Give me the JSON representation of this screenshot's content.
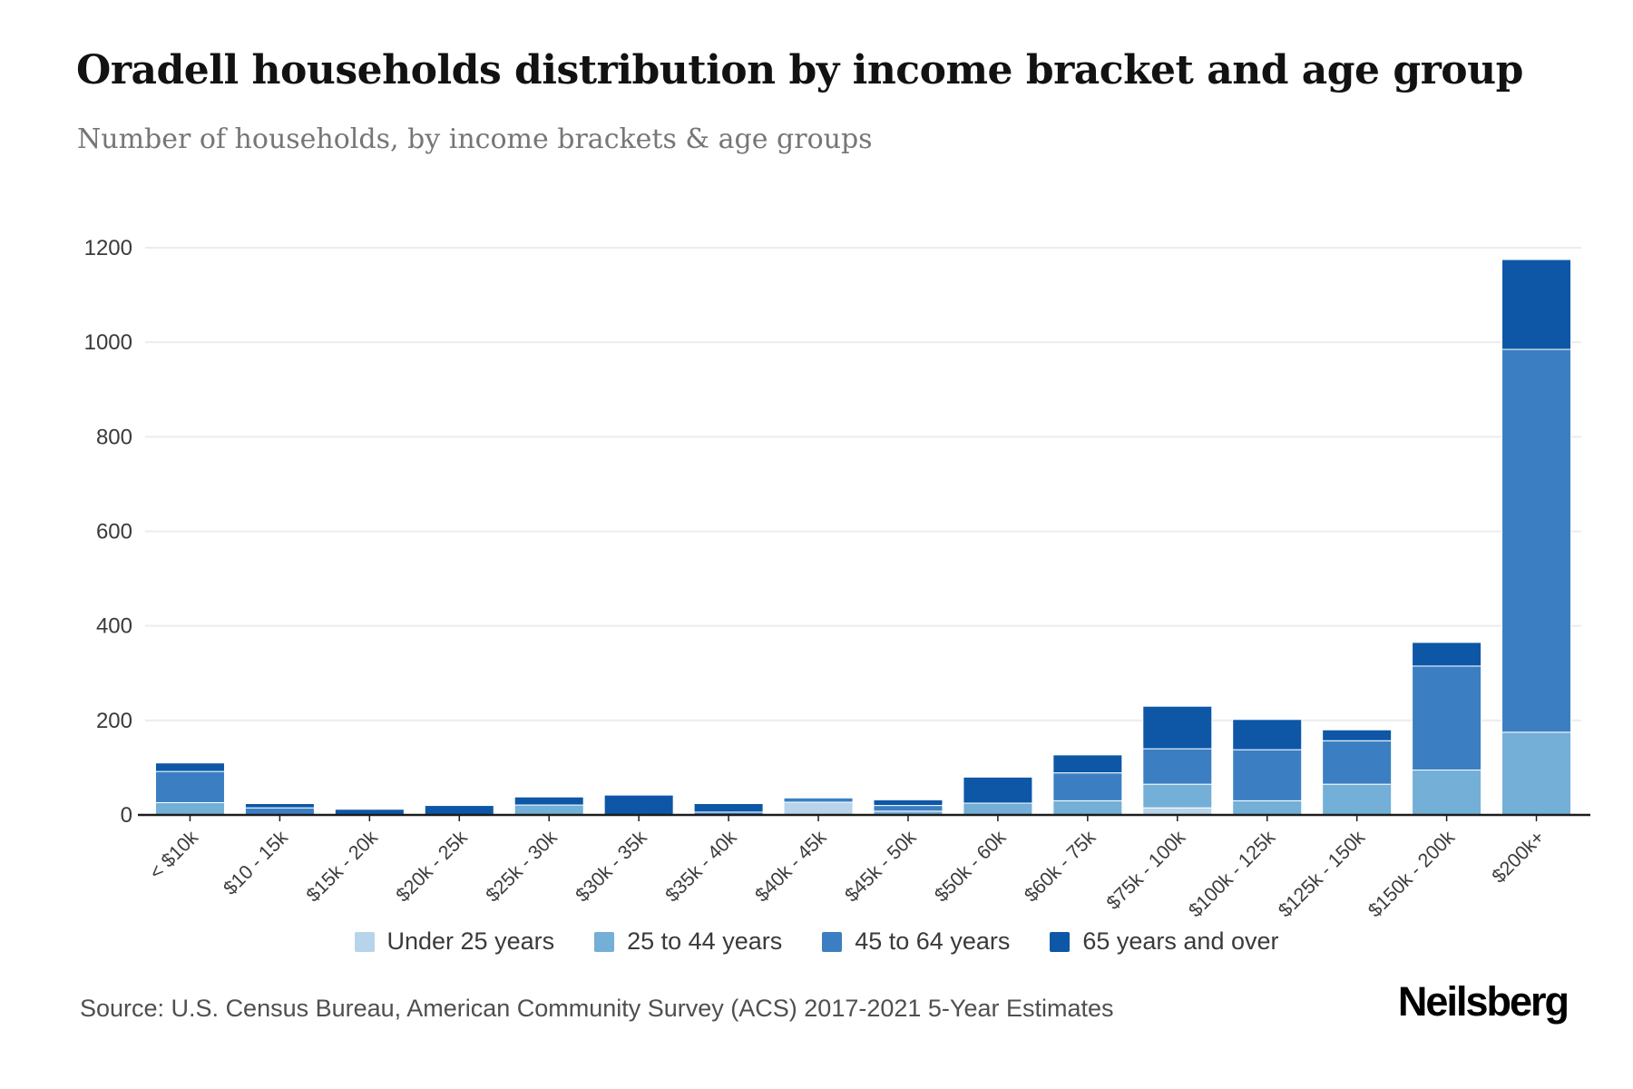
{
  "header": {
    "title": "Oradell households distribution by income bracket and age group",
    "subtitle": "Number of households, by income brackets & age groups"
  },
  "chart_data": {
    "type": "bar",
    "stacked": true,
    "title": "Oradell households distribution by income bracket and age group",
    "subtitle": "Number of households, by income brackets & age groups",
    "xlabel": "",
    "ylabel": "",
    "ylim": [
      0,
      1200
    ],
    "yticks": [
      0,
      200,
      400,
      600,
      800,
      1000,
      1200
    ],
    "grid": "horizontal",
    "legend_position": "bottom",
    "categories": [
      "< $10k",
      "$10 - 15k",
      "$15k - 20k",
      "$20k - 25k",
      "$25k - 30k",
      "$30k - 35k",
      "$35k - 40k",
      "$40k - 45k",
      "$45k - 50k",
      "$50k - 60k",
      "$60k - 75k",
      "$75k - 100k",
      "$100k - 125k",
      "$125k - 150k",
      "$150k - 200k",
      "$200k+"
    ],
    "series": [
      {
        "name": "Under 25 years",
        "color": "#b7d4ea",
        "values": [
          0,
          0,
          0,
          0,
          0,
          0,
          0,
          27,
          0,
          0,
          0,
          15,
          0,
          0,
          0,
          0
        ]
      },
      {
        "name": "25 to 44 years",
        "color": "#73afd6",
        "values": [
          26,
          0,
          0,
          0,
          21,
          0,
          0,
          0,
          8,
          25,
          30,
          50,
          30,
          65,
          95,
          175
        ]
      },
      {
        "name": "45 to 64 years",
        "color": "#3b7fc2",
        "values": [
          66,
          15,
          0,
          0,
          0,
          0,
          6,
          9,
          12,
          0,
          59,
          75,
          108,
          92,
          220,
          810
        ]
      },
      {
        "name": "65 years and over",
        "color": "#0d57a6",
        "values": [
          18,
          9,
          12,
          20,
          17,
          42,
          18,
          0,
          12,
          55,
          38,
          90,
          64,
          23,
          50,
          190
        ]
      }
    ],
    "totals": [
      110,
      24,
      12,
      20,
      38,
      42,
      24,
      36,
      32,
      80,
      127,
      230,
      202,
      180,
      365,
      1175
    ]
  },
  "footer": {
    "source": "Source: U.S. Census Bureau, American Community Survey (ACS) 2017-2021 5-Year Estimates",
    "brand": "Neilsberg"
  },
  "colors": {
    "axis": "#1c1c1c",
    "gridline": "#ececec",
    "tick_label": "#3a3a3a",
    "x_label": "#3c3c3c"
  }
}
